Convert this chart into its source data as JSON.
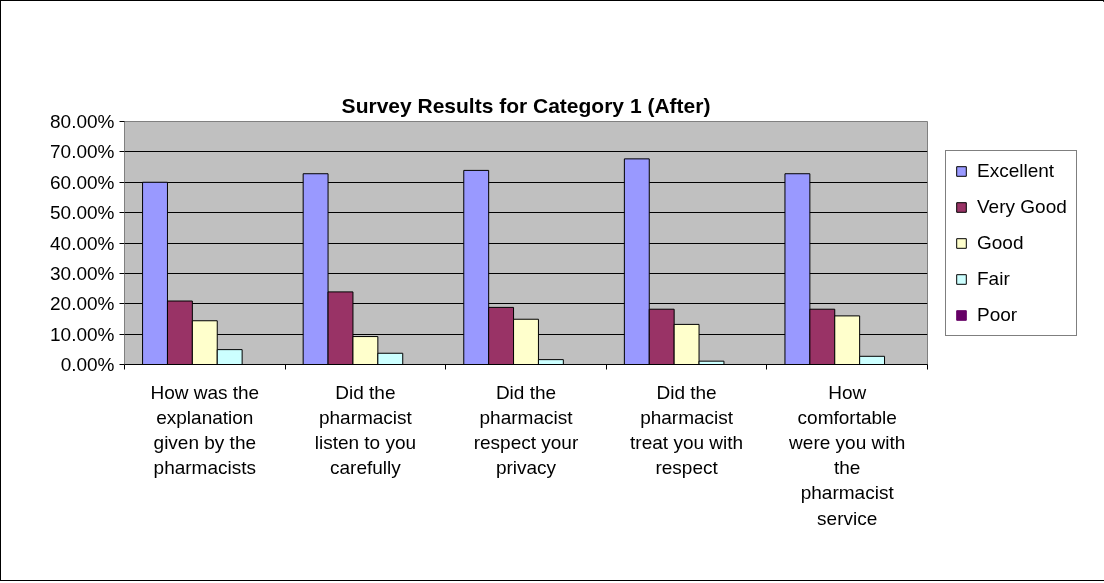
{
  "chart_data": {
    "type": "bar",
    "title": "Survey Results for Category 1 (After)",
    "categories": [
      "How was the explanation given by the pharmacists",
      "Did the pharmacist listen to you carefully",
      "Did the pharmacist respect your privacy",
      "Did the pharmacist treat you with respect",
      "How comfortable were you with the pharmacist service"
    ],
    "series": [
      {
        "name": "Excellent",
        "color": "#9999ff",
        "values": [
          60.0,
          62.8,
          63.9,
          67.7,
          62.8
        ]
      },
      {
        "name": "Very Good",
        "color": "#993366",
        "values": [
          20.9,
          23.9,
          18.8,
          18.2,
          18.2
        ]
      },
      {
        "name": "Good",
        "color": "#ffffcc",
        "values": [
          14.4,
          9.2,
          14.9,
          13.2,
          16.0
        ]
      },
      {
        "name": "Fair",
        "color": "#ccffff",
        "values": [
          4.9,
          3.7,
          1.6,
          1.1,
          2.7
        ]
      },
      {
        "name": "Poor",
        "color": "#660066",
        "values": [
          0,
          0,
          0,
          0,
          0
        ]
      }
    ],
    "ylim": [
      0,
      80
    ],
    "yticks": [
      {
        "value": 0,
        "label": "0.00%"
      },
      {
        "value": 10,
        "label": "10.00%"
      },
      {
        "value": 20,
        "label": "20.00%"
      },
      {
        "value": 30,
        "label": "30.00%"
      },
      {
        "value": 40,
        "label": "40.00%"
      },
      {
        "value": 50,
        "label": "50.00%"
      },
      {
        "value": 60,
        "label": "60.00%"
      },
      {
        "value": 70,
        "label": "70.00%"
      },
      {
        "value": 80,
        "label": "80.00%"
      }
    ],
    "grid": "y",
    "legend": "right"
  }
}
